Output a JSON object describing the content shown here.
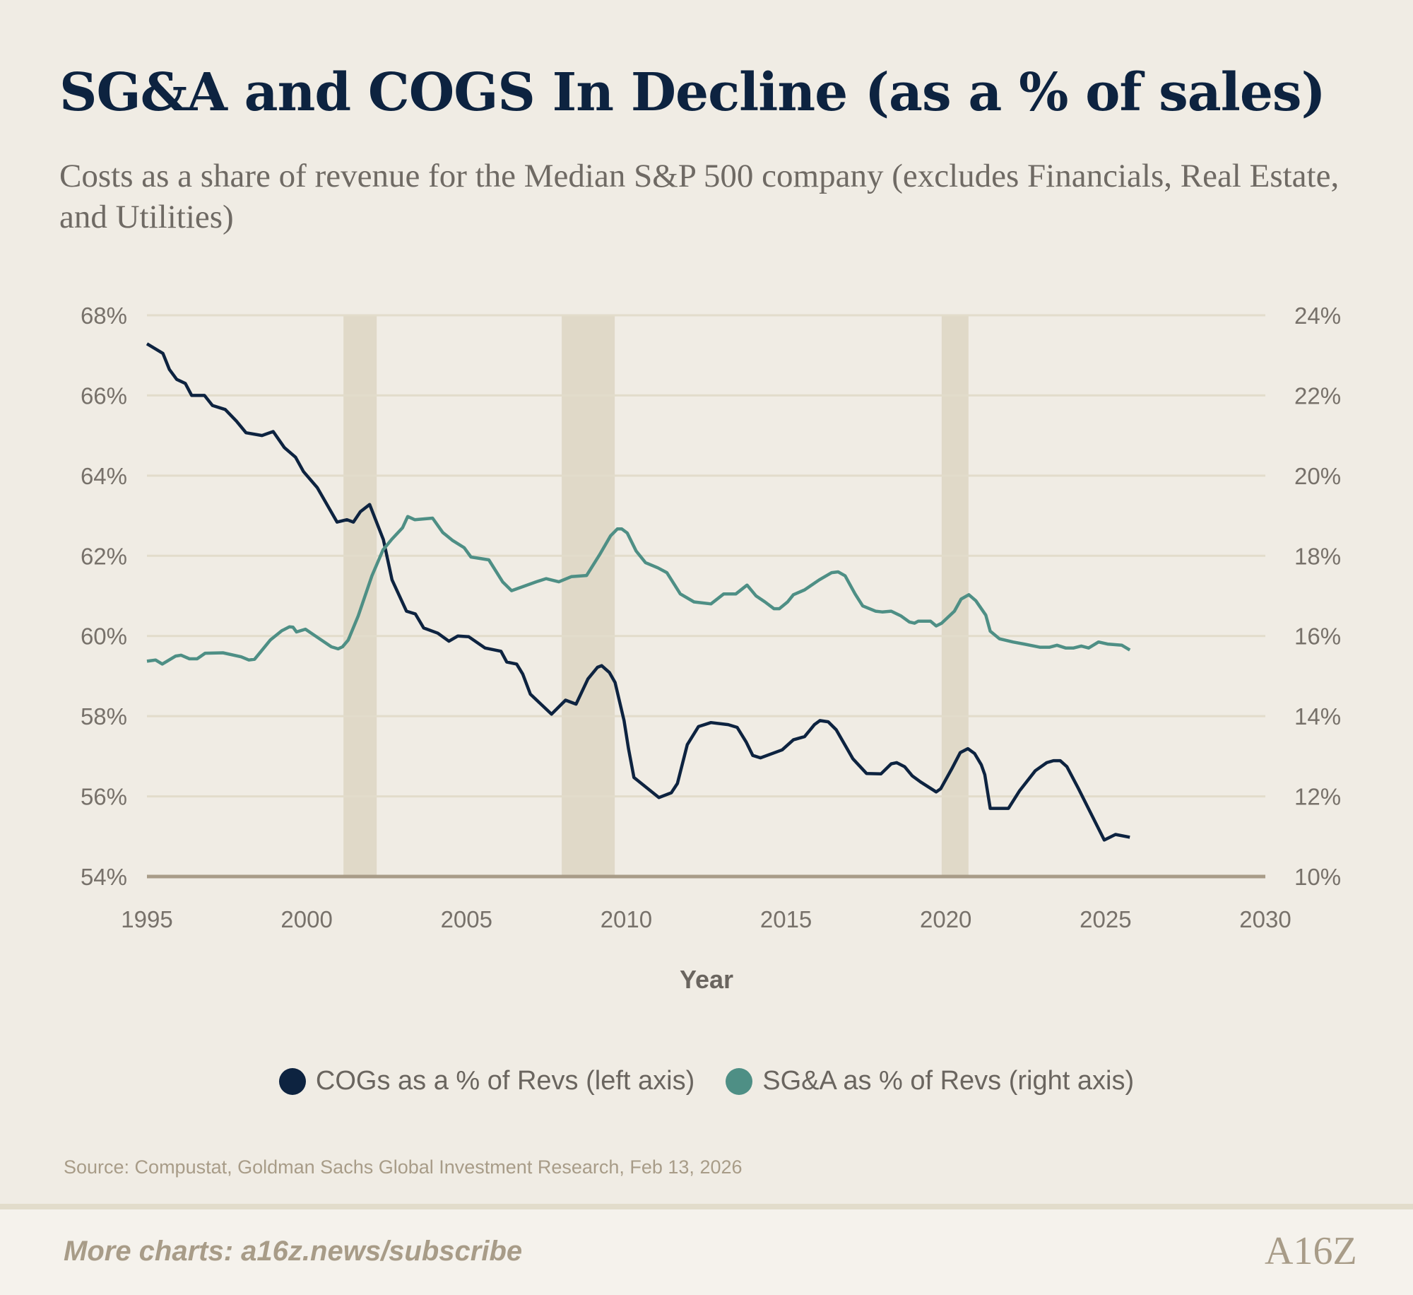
{
  "title": "SG&A and COGS In Decline (as a % of sales)",
  "subtitle": "Costs as a share of revenue for the Median S&P 500 company (excludes Financials, Real Estate, and Utilities)",
  "source": "Source: Compustat, Goldman Sachs Global Investment Research, Feb 13, 2026",
  "footer": {
    "link_text": "More charts: a16z.news/subscribe",
    "logo_text": "A16Z"
  },
  "colors": {
    "cogs": "#0d2340",
    "sga": "#4e8f85",
    "recession": "#e0d9c8",
    "grid": "#e2dccb",
    "axis": "#a89c88"
  },
  "chart_data": {
    "type": "line",
    "title": "SG&A and COGS In Decline (as a % of sales)",
    "xlabel": "Year",
    "xlim": [
      1995,
      2030
    ],
    "x_ticks": [
      "1995",
      "2000",
      "2005",
      "2010",
      "2015",
      "2020",
      "2025",
      "2030"
    ],
    "y_left": {
      "lim": [
        54,
        68
      ],
      "ticks": [
        "54%",
        "56%",
        "58%",
        "60%",
        "62%",
        "64%",
        "66%",
        "68%"
      ]
    },
    "y_right": {
      "lim": [
        10,
        24
      ],
      "ticks": [
        "10%",
        "12%",
        "14%",
        "16%",
        "18%",
        "20%",
        "22%",
        "24%"
      ]
    },
    "grid": true,
    "legend_placement": "bottom",
    "recessions": [
      [
        2001.15,
        2002.19
      ],
      [
        2007.98,
        2009.64
      ],
      [
        2019.87,
        2020.71
      ]
    ],
    "series": [
      {
        "name": "COGs as a % of Revs (left axis)",
        "axis": "left",
        "points": [
          [
            1995.0,
            67.29
          ],
          [
            1995.5,
            67.05
          ],
          [
            1995.7,
            66.65
          ],
          [
            1995.93,
            66.4
          ],
          [
            1996.2,
            66.3
          ],
          [
            1996.4,
            66.0
          ],
          [
            1996.8,
            66.0
          ],
          [
            1997.05,
            65.75
          ],
          [
            1997.45,
            65.65
          ],
          [
            1997.8,
            65.36
          ],
          [
            1998.1,
            65.07
          ],
          [
            1998.6,
            65.0
          ],
          [
            1998.95,
            65.1
          ],
          [
            1999.3,
            64.7
          ],
          [
            1999.65,
            64.46
          ],
          [
            1999.9,
            64.1
          ],
          [
            2000.33,
            63.7
          ],
          [
            2000.95,
            62.84
          ],
          [
            2001.26,
            62.9
          ],
          [
            2001.46,
            62.84
          ],
          [
            2001.68,
            63.1
          ],
          [
            2001.97,
            63.28
          ],
          [
            2002.4,
            62.4
          ],
          [
            2002.67,
            61.4
          ],
          [
            2003.12,
            60.62
          ],
          [
            2003.4,
            60.55
          ],
          [
            2003.66,
            60.2
          ],
          [
            2004.1,
            60.07
          ],
          [
            2004.45,
            59.87
          ],
          [
            2004.73,
            60.0
          ],
          [
            2005.07,
            59.98
          ],
          [
            2005.58,
            59.7
          ],
          [
            2006.08,
            59.62
          ],
          [
            2006.26,
            59.35
          ],
          [
            2006.57,
            59.3
          ],
          [
            2006.76,
            59.05
          ],
          [
            2007.0,
            58.55
          ],
          [
            2007.66,
            58.05
          ],
          [
            2008.1,
            58.4
          ],
          [
            2008.43,
            58.3
          ],
          [
            2008.8,
            58.93
          ],
          [
            2009.1,
            59.22
          ],
          [
            2009.23,
            59.26
          ],
          [
            2009.47,
            59.09
          ],
          [
            2009.65,
            58.84
          ],
          [
            2009.93,
            57.89
          ],
          [
            2010.07,
            57.19
          ],
          [
            2010.24,
            56.47
          ],
          [
            2011.02,
            55.97
          ],
          [
            2011.41,
            56.09
          ],
          [
            2011.6,
            56.32
          ],
          [
            2011.91,
            57.29
          ],
          [
            2012.26,
            57.74
          ],
          [
            2012.65,
            57.84
          ],
          [
            2013.19,
            57.79
          ],
          [
            2013.47,
            57.72
          ],
          [
            2013.75,
            57.36
          ],
          [
            2013.96,
            57.02
          ],
          [
            2014.2,
            56.96
          ],
          [
            2014.88,
            57.16
          ],
          [
            2015.23,
            57.41
          ],
          [
            2015.58,
            57.49
          ],
          [
            2015.89,
            57.79
          ],
          [
            2016.06,
            57.89
          ],
          [
            2016.32,
            57.86
          ],
          [
            2016.57,
            57.66
          ],
          [
            2017.09,
            56.94
          ],
          [
            2017.52,
            56.57
          ],
          [
            2017.97,
            56.56
          ],
          [
            2018.29,
            56.81
          ],
          [
            2018.46,
            56.84
          ],
          [
            2018.71,
            56.74
          ],
          [
            2018.95,
            56.51
          ],
          [
            2019.21,
            56.36
          ],
          [
            2019.7,
            56.11
          ],
          [
            2019.84,
            56.19
          ],
          [
            2020.19,
            56.69
          ],
          [
            2020.45,
            57.09
          ],
          [
            2020.69,
            57.19
          ],
          [
            2020.9,
            57.07
          ],
          [
            2021.11,
            56.79
          ],
          [
            2021.22,
            56.54
          ],
          [
            2021.39,
            55.7
          ],
          [
            2021.96,
            55.7
          ],
          [
            2022.31,
            56.14
          ],
          [
            2022.8,
            56.64
          ],
          [
            2023.16,
            56.84
          ],
          [
            2023.37,
            56.89
          ],
          [
            2023.58,
            56.89
          ],
          [
            2023.79,
            56.74
          ],
          [
            2024.14,
            56.21
          ],
          [
            2024.96,
            54.91
          ],
          [
            2025.31,
            55.05
          ],
          [
            2025.76,
            54.98
          ]
        ]
      },
      {
        "name": "SG&A as % of Revs (right axis)",
        "axis": "right",
        "points": [
          [
            1995.0,
            15.37
          ],
          [
            1995.27,
            15.4
          ],
          [
            1995.48,
            15.3
          ],
          [
            1995.9,
            15.5
          ],
          [
            1996.07,
            15.52
          ],
          [
            1996.33,
            15.43
          ],
          [
            1996.57,
            15.43
          ],
          [
            1996.82,
            15.57
          ],
          [
            1997.38,
            15.58
          ],
          [
            1997.95,
            15.48
          ],
          [
            1998.19,
            15.4
          ],
          [
            1998.37,
            15.42
          ],
          [
            1998.86,
            15.9
          ],
          [
            1999.22,
            16.13
          ],
          [
            1999.46,
            16.23
          ],
          [
            1999.57,
            16.22
          ],
          [
            1999.68,
            16.1
          ],
          [
            1999.96,
            16.17
          ],
          [
            2000.27,
            16.0
          ],
          [
            2000.77,
            15.73
          ],
          [
            2000.98,
            15.68
          ],
          [
            2001.12,
            15.73
          ],
          [
            2001.3,
            15.9
          ],
          [
            2001.61,
            16.5
          ],
          [
            2002.04,
            17.5
          ],
          [
            2002.39,
            18.15
          ],
          [
            2002.67,
            18.42
          ],
          [
            2003.0,
            18.7
          ],
          [
            2003.16,
            18.98
          ],
          [
            2003.38,
            18.9
          ],
          [
            2003.94,
            18.94
          ],
          [
            2004.26,
            18.58
          ],
          [
            2004.57,
            18.38
          ],
          [
            2004.93,
            18.2
          ],
          [
            2005.14,
            17.97
          ],
          [
            2005.7,
            17.9
          ],
          [
            2006.13,
            17.35
          ],
          [
            2006.41,
            17.13
          ],
          [
            2007.18,
            17.35
          ],
          [
            2007.49,
            17.43
          ],
          [
            2007.89,
            17.35
          ],
          [
            2008.28,
            17.48
          ],
          [
            2008.76,
            17.51
          ],
          [
            2009.16,
            18.02
          ],
          [
            2009.51,
            18.5
          ],
          [
            2009.72,
            18.67
          ],
          [
            2009.86,
            18.67
          ],
          [
            2010.03,
            18.57
          ],
          [
            2010.31,
            18.12
          ],
          [
            2010.6,
            17.83
          ],
          [
            2010.99,
            17.7
          ],
          [
            2011.27,
            17.58
          ],
          [
            2011.69,
            17.05
          ],
          [
            2012.12,
            16.85
          ],
          [
            2012.65,
            16.8
          ],
          [
            2013.05,
            17.05
          ],
          [
            2013.43,
            17.05
          ],
          [
            2013.78,
            17.27
          ],
          [
            2014.06,
            17.0
          ],
          [
            2014.34,
            16.85
          ],
          [
            2014.62,
            16.68
          ],
          [
            2014.79,
            16.68
          ],
          [
            2015.05,
            16.85
          ],
          [
            2015.23,
            17.03
          ],
          [
            2015.58,
            17.15
          ],
          [
            2016.04,
            17.4
          ],
          [
            2016.43,
            17.58
          ],
          [
            2016.63,
            17.6
          ],
          [
            2016.85,
            17.5
          ],
          [
            2017.16,
            17.05
          ],
          [
            2017.4,
            16.75
          ],
          [
            2017.8,
            16.62
          ],
          [
            2018.01,
            16.6
          ],
          [
            2018.29,
            16.62
          ],
          [
            2018.6,
            16.5
          ],
          [
            2018.86,
            16.35
          ],
          [
            2019.02,
            16.32
          ],
          [
            2019.14,
            16.37
          ],
          [
            2019.52,
            16.37
          ],
          [
            2019.7,
            16.25
          ],
          [
            2019.87,
            16.32
          ],
          [
            2020.27,
            16.62
          ],
          [
            2020.48,
            16.92
          ],
          [
            2020.72,
            17.03
          ],
          [
            2020.94,
            16.88
          ],
          [
            2021.25,
            16.52
          ],
          [
            2021.39,
            16.12
          ],
          [
            2021.68,
            15.93
          ],
          [
            2022.1,
            15.85
          ],
          [
            2022.45,
            15.8
          ],
          [
            2022.94,
            15.72
          ],
          [
            2023.25,
            15.72
          ],
          [
            2023.48,
            15.77
          ],
          [
            2023.75,
            15.7
          ],
          [
            2024.0,
            15.7
          ],
          [
            2024.24,
            15.75
          ],
          [
            2024.47,
            15.7
          ],
          [
            2024.78,
            15.85
          ],
          [
            2025.06,
            15.8
          ],
          [
            2025.51,
            15.77
          ],
          [
            2025.76,
            15.65
          ]
        ]
      }
    ]
  }
}
